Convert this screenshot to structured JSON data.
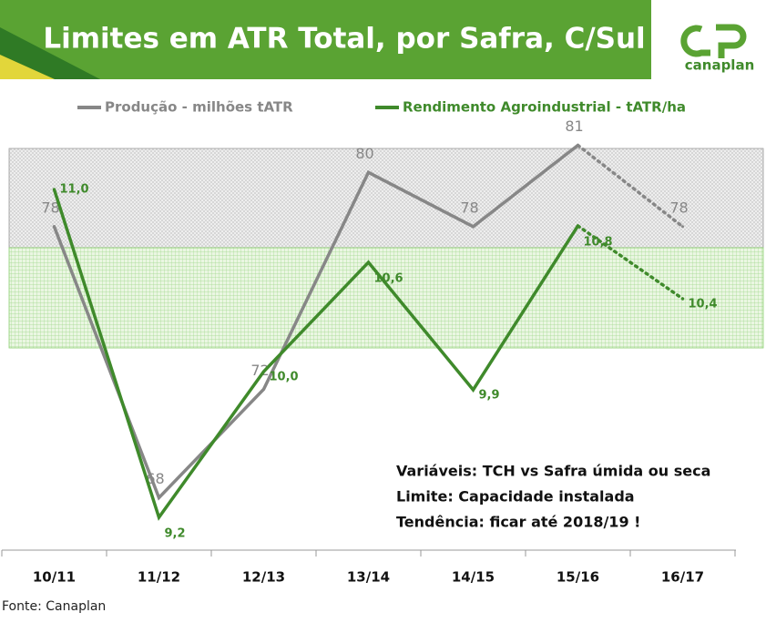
{
  "header": {
    "title": "Limites em ATR Total, por Safra, C/Sul",
    "logo": "canaplan"
  },
  "chart_data": {
    "type": "line",
    "categories": [
      "10/11",
      "11/12",
      "12/13",
      "13/14",
      "14/15",
      "15/16",
      "16/17"
    ],
    "projected_categories": [
      "16/17"
    ],
    "series": [
      {
        "name": "Produção - milhões tATR",
        "color": "#878787",
        "values": [
          78,
          68,
          72,
          80,
          78,
          81,
          78
        ]
      },
      {
        "name": "Rendimento Agroindustrial - tATR/ha",
        "color": "#3f8a2b",
        "axis": "y2",
        "values": [
          11.0,
          9.2,
          10.0,
          10.6,
          9.9,
          10.8,
          10.4
        ],
        "value_labels": [
          "11,0",
          "9,2",
          "10,0",
          "10,6",
          "9,9",
          "10,8",
          "10,4"
        ]
      }
    ],
    "ylim": [
      66.2,
      83
    ],
    "y2lim": [
      9.04,
      11.54
    ],
    "annotations": [
      "Variáveis: TCH vs Safra úmida ou seca",
      "Limite: Capacidade instalada",
      "Tendência: ficar até 2018/19 !"
    ]
  },
  "footer": "Fonte: Canaplan"
}
